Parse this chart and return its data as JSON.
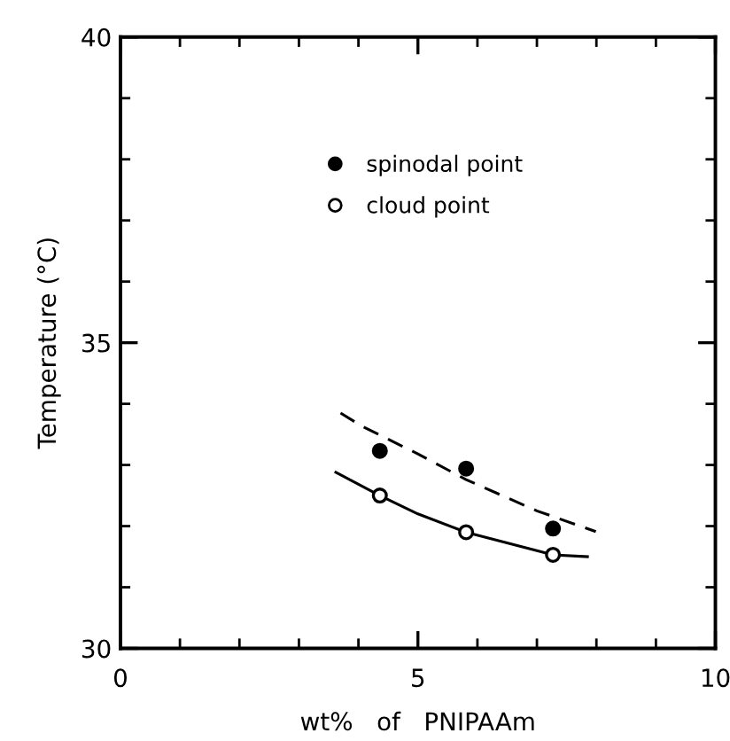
{
  "chart_data": {
    "type": "scatter",
    "xlabel": "wt%   of   PNIPAAm",
    "ylabel": "Temperature (°C)",
    "xlim": [
      0,
      10
    ],
    "ylim": [
      30,
      40
    ],
    "xticks": [
      0,
      {
        "value": 1,
        "label": null
      },
      {
        "value": 2,
        "label": null
      },
      {
        "value": 3,
        "label": null
      },
      {
        "value": 4,
        "label": null
      },
      5,
      {
        "value": 6,
        "label": null
      },
      {
        "value": 7,
        "label": null
      },
      {
        "value": 8,
        "label": null
      },
      {
        "value": 9,
        "label": null
      },
      10
    ],
    "yticks": [
      30,
      {
        "value": 31,
        "label": null
      },
      {
        "value": 32,
        "label": null
      },
      {
        "value": 33,
        "label": null
      },
      {
        "value": 34,
        "label": null
      },
      35,
      {
        "value": 36,
        "label": null
      },
      {
        "value": 37,
        "label": null
      },
      {
        "value": 38,
        "label": null
      },
      {
        "value": 39,
        "label": null
      },
      40
    ],
    "grid": false,
    "legend": "top",
    "series": [
      {
        "name": "spinodal point",
        "marker": "circle",
        "color": "#000000",
        "x": [
          4.36,
          5.81,
          7.27
        ],
        "values": [
          33.23,
          32.94,
          31.96
        ]
      },
      {
        "name": "cloud point",
        "marker": "circle",
        "color": "#ffffff",
        "x": [
          4.36,
          5.81,
          7.27
        ],
        "values": [
          32.5,
          31.9,
          31.53
        ]
      },
      {
        "type": "line",
        "marker": "none",
        "line_style": "dashed",
        "color": "#000000",
        "x": [
          3.7,
          4.05,
          5.0,
          5.81,
          7.0,
          7.99
        ],
        "values": [
          33.85,
          33.64,
          33.18,
          32.76,
          32.25,
          31.91
        ]
      },
      {
        "type": "line",
        "marker": "none",
        "line_style": "solid",
        "color": "#000000",
        "x": [
          3.62,
          4.36,
          5.0,
          5.81,
          7.0,
          7.27,
          7.85
        ],
        "values": [
          32.88,
          32.5,
          32.2,
          31.9,
          31.6,
          31.53,
          31.5
        ]
      }
    ]
  }
}
